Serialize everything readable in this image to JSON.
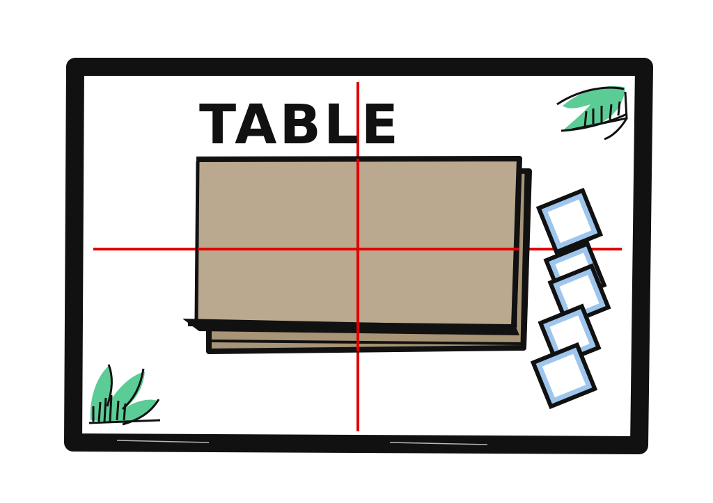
{
  "diagram": {
    "title": "TABLE"
  },
  "colors": {
    "frame": "#111111",
    "crosshair": "#e00000",
    "table_fill": "#baa98f",
    "table_shadow": "#a89476",
    "plant": "#5ccc96",
    "square_outer": "#9ec5ec",
    "square_inner": "#ffffff",
    "background": "#ffffff"
  },
  "icons": {
    "top_right": "plant-icon",
    "bottom_left": "plant-icon",
    "right_stack": "square-stack-icon"
  }
}
